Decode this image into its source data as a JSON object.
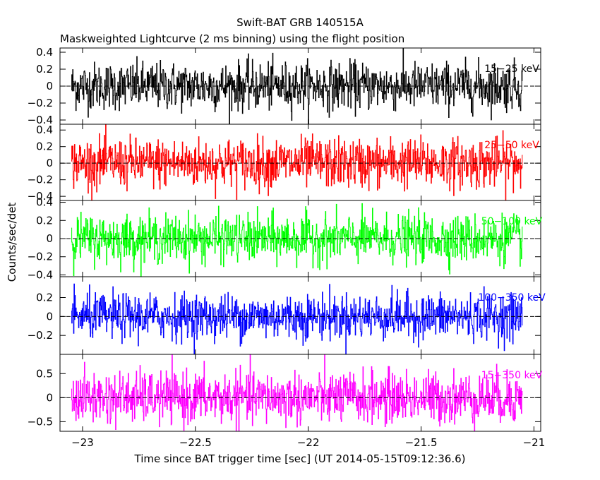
{
  "chart_data": {
    "type": "line",
    "title": "Swift-BAT GRB 140515A",
    "subtitle": "Maskweighted Lightcurve (2 ms binning) using the flight position",
    "xlabel": "Time since BAT trigger time [sec] (UT 2014-05-15T09:12:36.6)",
    "ylabel": "Counts/sec/det",
    "xlim": [
      -23.1,
      -20.97
    ],
    "x_ticks": [
      -23,
      -22.5,
      -22,
      -21.5,
      -21
    ],
    "x_tick_labels": [
      "−23",
      "−22.5",
      "−22",
      "−21.5",
      "−21"
    ],
    "x_range_data": [
      -23.05,
      -21.05
    ],
    "bin_width_sec": 0.002,
    "panels": [
      {
        "name": "15-25 keV",
        "label": "15−25 keV",
        "color": "#000000",
        "ylim": [
          -0.45,
          0.45
        ],
        "yticks": [
          -0.4,
          -0.2,
          0,
          0.2,
          0.4
        ],
        "ytick_labels": [
          "−0.4",
          "−0.2",
          "0",
          "0.2",
          "0.4"
        ],
        "noise_amplitude": 0.14,
        "mean": 0.0
      },
      {
        "name": "25-50 keV",
        "label": "25−50 keV",
        "color": "#ff0000",
        "ylim": [
          -0.45,
          0.47
        ],
        "yticks": [
          -0.4,
          -0.2,
          0,
          0.2,
          0.4
        ],
        "ytick_labels": [
          "−0.4",
          "−0.2",
          "0",
          "0.2",
          "0.4"
        ],
        "noise_amplitude": 0.15,
        "mean": 0.0
      },
      {
        "name": "50-100 keV",
        "label": "50−100 keV",
        "color": "#00ff00",
        "ylim": [
          -0.42,
          0.42
        ],
        "yticks": [
          -0.4,
          -0.2,
          0,
          0.2,
          0.4
        ],
        "ytick_labels": [
          "−0.4",
          "−0.2",
          "0",
          "0.2",
          "0.4"
        ],
        "noise_amplitude": 0.13,
        "mean": 0.0
      },
      {
        "name": "100-350 keV",
        "label": "100−350 keV",
        "color": "#0000ff",
        "ylim": [
          -0.4,
          0.42
        ],
        "yticks": [
          -0.2,
          0,
          0.2
        ],
        "ytick_labels": [
          "−0.2",
          "0",
          "0.2"
        ],
        "noise_amplitude": 0.12,
        "mean": 0.0
      },
      {
        "name": "15-350 keV",
        "label": "15−350 keV",
        "color": "#ff00ff",
        "ylim": [
          -0.7,
          0.9
        ],
        "yticks": [
          -0.5,
          0,
          0.5
        ],
        "ytick_labels": [
          "−0.5",
          "0",
          "0.5"
        ],
        "noise_amplitude": 0.27,
        "mean": 0.0
      }
    ],
    "zero_line": "dashed",
    "grid": false,
    "legend": "none"
  }
}
